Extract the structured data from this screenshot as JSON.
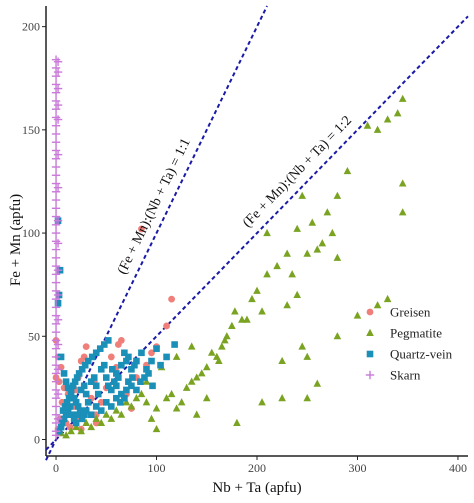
{
  "chart_data": {
    "type": "scatter",
    "title": "",
    "xlabel": "Nb + Ta (apfu)",
    "ylabel": "Fe + Mn (apfu)",
    "xlim": [
      -10,
      410
    ],
    "ylim": [
      -8,
      210
    ],
    "x_ticks": [
      0,
      100,
      200,
      300,
      400
    ],
    "y_ticks": [
      0,
      50,
      100,
      150,
      200
    ],
    "x_tick_labels": [
      "0",
      "100",
      "200",
      "300",
      "400"
    ],
    "y_tick_labels": [
      "0",
      "50",
      "100",
      "150",
      "200"
    ],
    "grid": false,
    "legend_position": "right",
    "reference_lines": [
      {
        "label": "(Fe + Mn):(Nb + Ta) = 1:1",
        "slope": 1.0,
        "color": "#1a1aa8",
        "style": "dashed"
      },
      {
        "label": "(Fe + Mn):(Nb + Ta) = 1:2",
        "slope": 0.5,
        "color": "#1a1aa8",
        "style": "dashed"
      }
    ],
    "series": [
      {
        "name": "Greisen",
        "marker": "circle",
        "color": "#f07f7a",
        "points": [
          [
            0,
            48
          ],
          [
            2,
            40
          ],
          [
            5,
            35
          ],
          [
            0,
            30
          ],
          [
            3,
            28
          ],
          [
            8,
            25
          ],
          [
            12,
            22
          ],
          [
            15,
            20
          ],
          [
            6,
            18
          ],
          [
            10,
            15
          ],
          [
            18,
            16
          ],
          [
            20,
            24
          ],
          [
            22,
            30
          ],
          [
            25,
            38
          ],
          [
            28,
            40
          ],
          [
            30,
            45
          ],
          [
            35,
            20
          ],
          [
            38,
            28
          ],
          [
            40,
            12
          ],
          [
            45,
            18
          ],
          [
            50,
            25
          ],
          [
            55,
            40
          ],
          [
            60,
            35
          ],
          [
            62,
            46
          ],
          [
            65,
            48
          ],
          [
            70,
            22
          ],
          [
            75,
            15
          ],
          [
            80,
            30
          ],
          [
            85,
            102
          ],
          [
            90,
            36
          ],
          [
            95,
            42
          ],
          [
            100,
            45
          ],
          [
            110,
            55
          ],
          [
            115,
            68
          ],
          [
            10,
            8
          ],
          [
            4,
            10
          ],
          [
            2,
            5
          ],
          [
            14,
            6
          ],
          [
            20,
            10
          ],
          [
            30,
            12
          ],
          [
            25,
            5
          ],
          [
            40,
            8
          ]
        ]
      },
      {
        "name": "Pegmatite",
        "marker": "triangle",
        "color": "#7aa322",
        "points": [
          [
            345,
            165
          ],
          [
            340,
            158
          ],
          [
            330,
            155
          ],
          [
            320,
            150
          ],
          [
            310,
            152
          ],
          [
            345,
            124
          ],
          [
            345,
            110
          ],
          [
            290,
            130
          ],
          [
            280,
            118
          ],
          [
            270,
            110
          ],
          [
            265,
            95
          ],
          [
            275,
            100
          ],
          [
            255,
            105
          ],
          [
            230,
            90
          ],
          [
            240,
            102
          ],
          [
            245,
            118
          ],
          [
            250,
            90
          ],
          [
            220,
            84
          ],
          [
            210,
            80
          ],
          [
            200,
            72
          ],
          [
            195,
            68
          ],
          [
            185,
            58
          ],
          [
            175,
            55
          ],
          [
            170,
            50
          ],
          [
            165,
            45
          ],
          [
            160,
            40
          ],
          [
            150,
            35
          ],
          [
            140,
            30
          ],
          [
            130,
            25
          ],
          [
            120,
            15
          ],
          [
            100,
            5
          ],
          [
            95,
            10
          ],
          [
            110,
            20
          ],
          [
            115,
            22
          ],
          [
            125,
            18
          ],
          [
            135,
            28
          ],
          [
            145,
            32
          ],
          [
            155,
            42
          ],
          [
            162,
            38
          ],
          [
            168,
            48
          ],
          [
            178,
            62
          ],
          [
            190,
            58
          ],
          [
            205,
            62
          ],
          [
            225,
            38
          ],
          [
            245,
            45
          ],
          [
            300,
            60
          ],
          [
            320,
            65
          ],
          [
            330,
            68
          ],
          [
            280,
            50
          ],
          [
            250,
            40
          ],
          [
            225,
            20
          ],
          [
            205,
            18
          ],
          [
            180,
            8
          ],
          [
            140,
            12
          ],
          [
            100,
            15
          ],
          [
            90,
            18
          ],
          [
            80,
            20
          ],
          [
            70,
            18
          ],
          [
            60,
            14
          ],
          [
            50,
            12
          ],
          [
            40,
            10
          ],
          [
            30,
            8
          ],
          [
            20,
            6
          ],
          [
            15,
            4
          ],
          [
            10,
            2
          ],
          [
            5,
            3
          ],
          [
            85,
            22
          ],
          [
            75,
            16
          ],
          [
            65,
            12
          ],
          [
            55,
            10
          ],
          [
            45,
            8
          ],
          [
            35,
            6
          ],
          [
            25,
            4
          ],
          [
            150,
            20
          ],
          [
            135,
            45
          ],
          [
            120,
            40
          ],
          [
            105,
            35
          ],
          [
            90,
            28
          ],
          [
            210,
            100
          ],
          [
            235,
            80
          ],
          [
            260,
            92
          ],
          [
            280,
            88
          ],
          [
            240,
            70
          ],
          [
            230,
            65
          ],
          [
            250,
            20
          ],
          [
            260,
            27
          ]
        ]
      },
      {
        "name": "Quartz-vein",
        "marker": "square",
        "color": "#1a8fb8",
        "points": [
          [
            2,
            106
          ],
          [
            4,
            82
          ],
          [
            3,
            70
          ],
          [
            2,
            66
          ],
          [
            5,
            40
          ],
          [
            8,
            32
          ],
          [
            10,
            28
          ],
          [
            12,
            25
          ],
          [
            15,
            22
          ],
          [
            18,
            20
          ],
          [
            20,
            18
          ],
          [
            22,
            16
          ],
          [
            25,
            24
          ],
          [
            28,
            26
          ],
          [
            30,
            22
          ],
          [
            32,
            18
          ],
          [
            35,
            28
          ],
          [
            38,
            30
          ],
          [
            40,
            26
          ],
          [
            42,
            22
          ],
          [
            45,
            34
          ],
          [
            48,
            36
          ],
          [
            50,
            30
          ],
          [
            52,
            26
          ],
          [
            55,
            24
          ],
          [
            58,
            28
          ],
          [
            60,
            32
          ],
          [
            62,
            30
          ],
          [
            65,
            36
          ],
          [
            68,
            42
          ],
          [
            70,
            38
          ],
          [
            72,
            40
          ],
          [
            75,
            34
          ],
          [
            78,
            36
          ],
          [
            80,
            38
          ],
          [
            85,
            42
          ],
          [
            90,
            34
          ],
          [
            95,
            38
          ],
          [
            100,
            44
          ],
          [
            8,
            10
          ],
          [
            10,
            12
          ],
          [
            12,
            14
          ],
          [
            14,
            16
          ],
          [
            16,
            12
          ],
          [
            18,
            10
          ],
          [
            20,
            8
          ],
          [
            22,
            12
          ],
          [
            24,
            14
          ],
          [
            26,
            10
          ],
          [
            28,
            12
          ],
          [
            30,
            14
          ],
          [
            35,
            12
          ],
          [
            40,
            16
          ],
          [
            45,
            14
          ],
          [
            50,
            18
          ],
          [
            55,
            16
          ],
          [
            60,
            20
          ],
          [
            65,
            22
          ],
          [
            70,
            24
          ],
          [
            75,
            26
          ],
          [
            5,
            6
          ],
          [
            6,
            8
          ],
          [
            3,
            4
          ],
          [
            7,
            14
          ],
          [
            9,
            16
          ],
          [
            11,
            18
          ],
          [
            13,
            20
          ],
          [
            15,
            24
          ],
          [
            17,
            26
          ],
          [
            19,
            28
          ],
          [
            21,
            30
          ],
          [
            23,
            32
          ],
          [
            26,
            34
          ],
          [
            29,
            36
          ],
          [
            32,
            38
          ],
          [
            36,
            40
          ],
          [
            40,
            42
          ],
          [
            44,
            44
          ],
          [
            48,
            46
          ],
          [
            52,
            48
          ],
          [
            56,
            34
          ],
          [
            60,
            26
          ],
          [
            64,
            18
          ],
          [
            68,
            20
          ],
          [
            72,
            28
          ],
          [
            76,
            30
          ],
          [
            80,
            24
          ],
          [
            84,
            28
          ],
          [
            88,
            30
          ],
          [
            92,
            32
          ],
          [
            96,
            26
          ],
          [
            104,
            36
          ],
          [
            110,
            40
          ],
          [
            118,
            46
          ]
        ]
      },
      {
        "name": "Skarn",
        "marker": "plus",
        "color": "#c97ad8",
        "points": [
          [
            0,
            184
          ],
          [
            0,
            180
          ],
          [
            0,
            176
          ],
          [
            0,
            172
          ],
          [
            0,
            168
          ],
          [
            0,
            164
          ],
          [
            0,
            160
          ],
          [
            0,
            156
          ],
          [
            0,
            152
          ],
          [
            0,
            148
          ],
          [
            0,
            144
          ],
          [
            0,
            140
          ],
          [
            0,
            136
          ],
          [
            0,
            132
          ],
          [
            0,
            128
          ],
          [
            0,
            124
          ],
          [
            0,
            120
          ],
          [
            0,
            116
          ],
          [
            0,
            112
          ],
          [
            0,
            108
          ],
          [
            0,
            104
          ],
          [
            0,
            100
          ],
          [
            0,
            96
          ],
          [
            0,
            92
          ],
          [
            0,
            88
          ],
          [
            0,
            84
          ],
          [
            0,
            80
          ],
          [
            0,
            76
          ],
          [
            0,
            72
          ],
          [
            0,
            68
          ],
          [
            0,
            64
          ],
          [
            0,
            60
          ],
          [
            0,
            56
          ],
          [
            0,
            52
          ],
          [
            0,
            48
          ],
          [
            0,
            44
          ],
          [
            0,
            40
          ],
          [
            0,
            36
          ],
          [
            0,
            32
          ],
          [
            0,
            28
          ],
          [
            0,
            24
          ],
          [
            0,
            20
          ],
          [
            0,
            16
          ],
          [
            0,
            12
          ],
          [
            0,
            8
          ],
          [
            0,
            4
          ],
          [
            0,
            2
          ],
          [
            2,
            183
          ],
          [
            2,
            178
          ],
          [
            2,
            170
          ],
          [
            2,
            162
          ],
          [
            2,
            155
          ],
          [
            2,
            138
          ],
          [
            2,
            122
          ],
          [
            2,
            106
          ],
          [
            2,
            95
          ],
          [
            2,
            82
          ],
          [
            2,
            70
          ],
          [
            2,
            58
          ],
          [
            2,
            46
          ],
          [
            2,
            34
          ],
          [
            2,
            22
          ],
          [
            2,
            10
          ]
        ]
      }
    ]
  }
}
